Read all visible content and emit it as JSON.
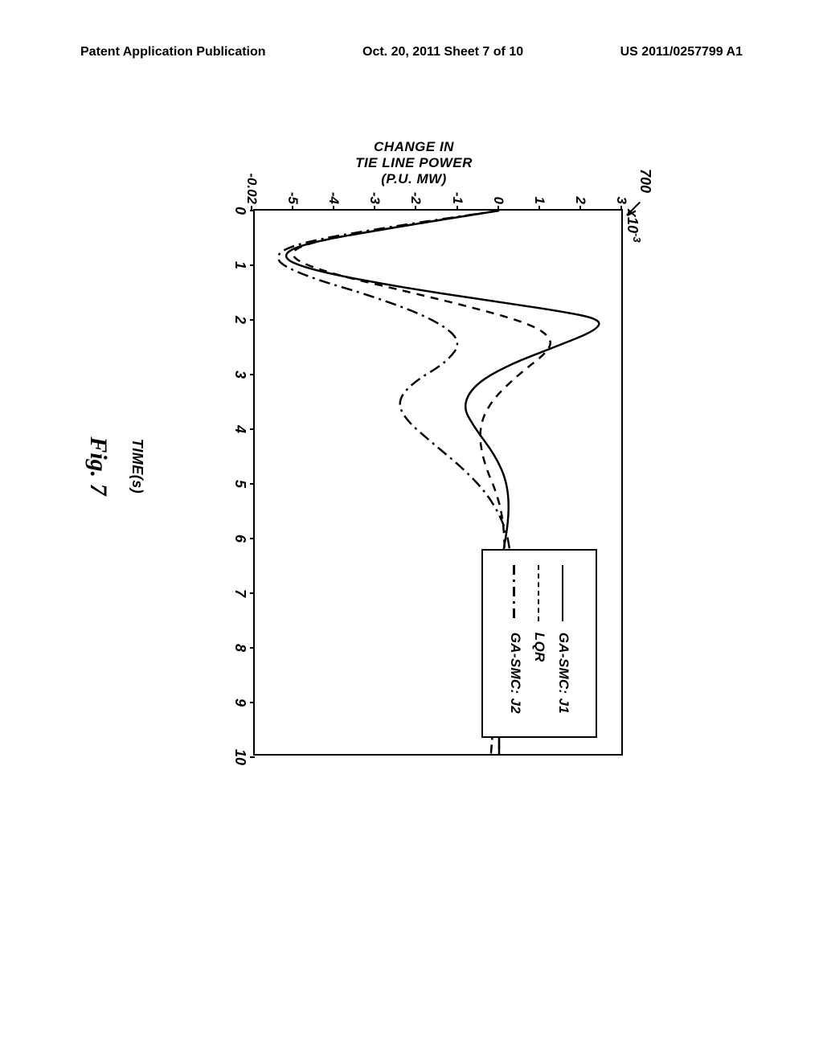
{
  "header": {
    "left": "Patent Application Publication",
    "center": "Oct. 20, 2011  Sheet 7 of 10",
    "right": "US 2011/0257799 A1"
  },
  "chart": {
    "type": "line",
    "ref_number": "700",
    "exponent_label": "x10⁻³",
    "y_label": "CHANGE IN\nTIE LINE POWER\n(P.U. MW)",
    "x_label": "TIME(s)",
    "figure_label": "Fig.  7",
    "y_ticks": [
      {
        "label": "3",
        "value": 3
      },
      {
        "label": "2",
        "value": 2
      },
      {
        "label": "1",
        "value": 1
      },
      {
        "label": "0",
        "value": 0
      },
      {
        "label": "-1",
        "value": -1
      },
      {
        "label": "-2",
        "value": -2
      },
      {
        "label": "-3",
        "value": -3
      },
      {
        "label": "-4",
        "value": -4
      },
      {
        "label": "-5",
        "value": -5
      },
      {
        "label": "-0.02",
        "value": -6
      }
    ],
    "x_ticks": [
      {
        "label": "0",
        "value": 0
      },
      {
        "label": "1",
        "value": 1
      },
      {
        "label": "2",
        "value": 2
      },
      {
        "label": "3",
        "value": 3
      },
      {
        "label": "4",
        "value": 4
      },
      {
        "label": "5",
        "value": 5
      },
      {
        "label": "6",
        "value": 6
      },
      {
        "label": "7",
        "value": 7
      },
      {
        "label": "8",
        "value": 8
      },
      {
        "label": "9",
        "value": 9
      },
      {
        "label": "10",
        "value": 10
      }
    ],
    "ylim": [
      -6,
      3
    ],
    "xlim": [
      0,
      10
    ],
    "legend": [
      {
        "label": "GA-SMC: J1",
        "style": "solid"
      },
      {
        "label": "LQR",
        "style": "dash"
      },
      {
        "label": "GA-SMC: J2",
        "style": "dashdot"
      }
    ],
    "curves": {
      "solid": [
        [
          0,
          0
        ],
        [
          0.3,
          -2.5
        ],
        [
          0.6,
          -4.8
        ],
        [
          0.85,
          -5.4
        ],
        [
          1.1,
          -4.6
        ],
        [
          1.4,
          -2.5
        ],
        [
          1.65,
          -0.3
        ],
        [
          1.85,
          1.5
        ],
        [
          2.0,
          2.5
        ],
        [
          2.2,
          2.4
        ],
        [
          2.5,
          1.4
        ],
        [
          2.85,
          0.2
        ],
        [
          3.2,
          -0.6
        ],
        [
          3.6,
          -0.9
        ],
        [
          4.0,
          -0.6
        ],
        [
          4.5,
          -0.1
        ],
        [
          5.0,
          0.2
        ],
        [
          5.6,
          0.25
        ],
        [
          6.3,
          0.1
        ],
        [
          7.0,
          -0.05
        ],
        [
          8.0,
          -0.05
        ],
        [
          9.0,
          0.0
        ],
        [
          10.0,
          0.0
        ]
      ],
      "dash": [
        [
          0,
          0
        ],
        [
          0.3,
          -2.5
        ],
        [
          0.6,
          -4.8
        ],
        [
          0.85,
          -5.2
        ],
        [
          1.15,
          -4.2
        ],
        [
          1.5,
          -2.2
        ],
        [
          1.85,
          -0.3
        ],
        [
          2.1,
          0.8
        ],
        [
          2.35,
          1.3
        ],
        [
          2.6,
          1.2
        ],
        [
          3.0,
          0.5
        ],
        [
          3.5,
          -0.2
        ],
        [
          4.0,
          -0.5
        ],
        [
          4.6,
          -0.4
        ],
        [
          5.3,
          0.0
        ],
        [
          6.0,
          0.15
        ],
        [
          7.0,
          0.1
        ],
        [
          8.0,
          0.0
        ],
        [
          9.0,
          0.0
        ],
        [
          10.0,
          0.0
        ]
      ],
      "dashdot": [
        [
          0,
          0
        ],
        [
          0.3,
          -2.7
        ],
        [
          0.6,
          -5.0
        ],
        [
          0.88,
          -5.6
        ],
        [
          1.2,
          -4.8
        ],
        [
          1.6,
          -3.0
        ],
        [
          2.0,
          -1.6
        ],
        [
          2.4,
          -0.9
        ],
        [
          2.8,
          -1.3
        ],
        [
          3.15,
          -2.1
        ],
        [
          3.5,
          -2.5
        ],
        [
          3.85,
          -2.3
        ],
        [
          4.3,
          -1.6
        ],
        [
          4.8,
          -0.8
        ],
        [
          5.3,
          -0.2
        ],
        [
          5.9,
          0.2
        ],
        [
          6.5,
          0.3
        ],
        [
          7.2,
          0.2
        ],
        [
          8.0,
          0.0
        ],
        [
          8.8,
          -0.1
        ],
        [
          9.5,
          -0.15
        ],
        [
          10.0,
          -0.2
        ]
      ]
    },
    "line_color": "#000000",
    "line_width": 2.5,
    "background_color": "#ffffff",
    "border_color": "#000000"
  }
}
